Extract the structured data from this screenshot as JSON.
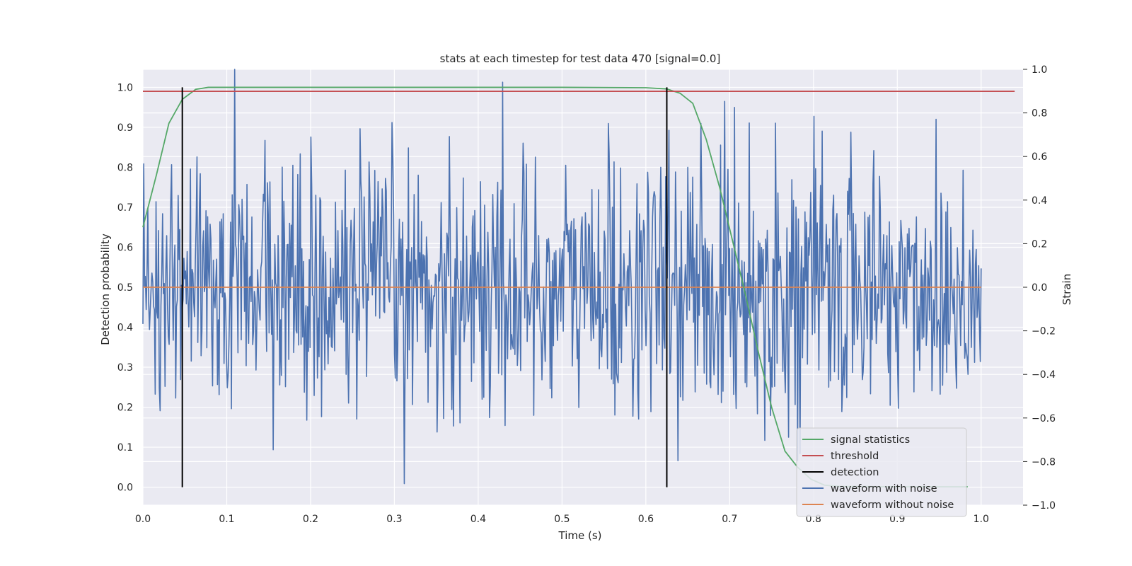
{
  "chart_data": {
    "type": "line",
    "title": "stats at each timestep for test data 470 [signal=0.0]",
    "xlabel": "Time (s)",
    "ylabel_left": "Detection probability",
    "ylabel_right": "Strain",
    "xlim": [
      0.0,
      1.05
    ],
    "ylim_left": [
      -0.045,
      1.045
    ],
    "ylim_right": [
      -1.0,
      1.0
    ],
    "x_ticks": [
      "0.0",
      "0.1",
      "0.2",
      "0.3",
      "0.4",
      "0.5",
      "0.6",
      "0.7",
      "0.8",
      "0.9",
      "1.0"
    ],
    "y_left_ticks": [
      "0.0",
      "0.1",
      "0.2",
      "0.3",
      "0.4",
      "0.5",
      "0.6",
      "0.7",
      "0.8",
      "0.9",
      "1.0"
    ],
    "y_right_ticks": [
      "−1.0",
      "−0.8",
      "−0.6",
      "−0.4",
      "−0.2",
      "0.0",
      "0.2",
      "0.4",
      "0.6",
      "0.8",
      "1.0"
    ],
    "grid": true,
    "legend_position": "lower-right",
    "series": [
      {
        "name": "signal statistics",
        "color": "#55a868",
        "axis": "left",
        "x": [
          0.0,
          0.016,
          0.031,
          0.047,
          0.063,
          0.078,
          0.1,
          0.2,
          0.3,
          0.4,
          0.5,
          0.6,
          0.625,
          0.641,
          0.656,
          0.672,
          0.688,
          0.703,
          0.719,
          0.734,
          0.75,
          0.766,
          0.781,
          0.797,
          0.813,
          0.83,
          0.9,
          0.984
        ],
        "values": [
          0.65,
          0.78,
          0.91,
          0.97,
          0.995,
          1.0,
          1.0,
          1.0,
          1.0,
          1.0,
          1.0,
          0.999,
          0.996,
          0.985,
          0.96,
          0.87,
          0.75,
          0.62,
          0.48,
          0.34,
          0.2,
          0.09,
          0.05,
          0.02,
          0.005,
          0.002,
          0.001,
          0.001
        ]
      },
      {
        "name": "threshold",
        "color": "#c44e52",
        "axis": "left",
        "x": [
          0.0,
          1.04
        ],
        "values": [
          0.99,
          0.99
        ]
      },
      {
        "name": "detection",
        "color": "#000000",
        "axis": "left",
        "type": "vlines",
        "x": [
          0.047,
          0.625
        ],
        "range": [
          0.0,
          1.0
        ]
      },
      {
        "name": "waveform with noise",
        "color": "#4c72b0",
        "axis": "right",
        "x_range": [
          0.0,
          1.0
        ],
        "samples": 1024,
        "std": 0.3,
        "range_right": [
          -0.92,
          1.0
        ]
      },
      {
        "name": "waveform without noise",
        "color": "#dd8452",
        "axis": "right",
        "x": [
          0.0,
          1.0
        ],
        "values": [
          0.0,
          0.0
        ]
      }
    ]
  },
  "colors": {
    "plot_background": "#eaeaf2",
    "grid": "#ffffff",
    "text": "#262626"
  }
}
